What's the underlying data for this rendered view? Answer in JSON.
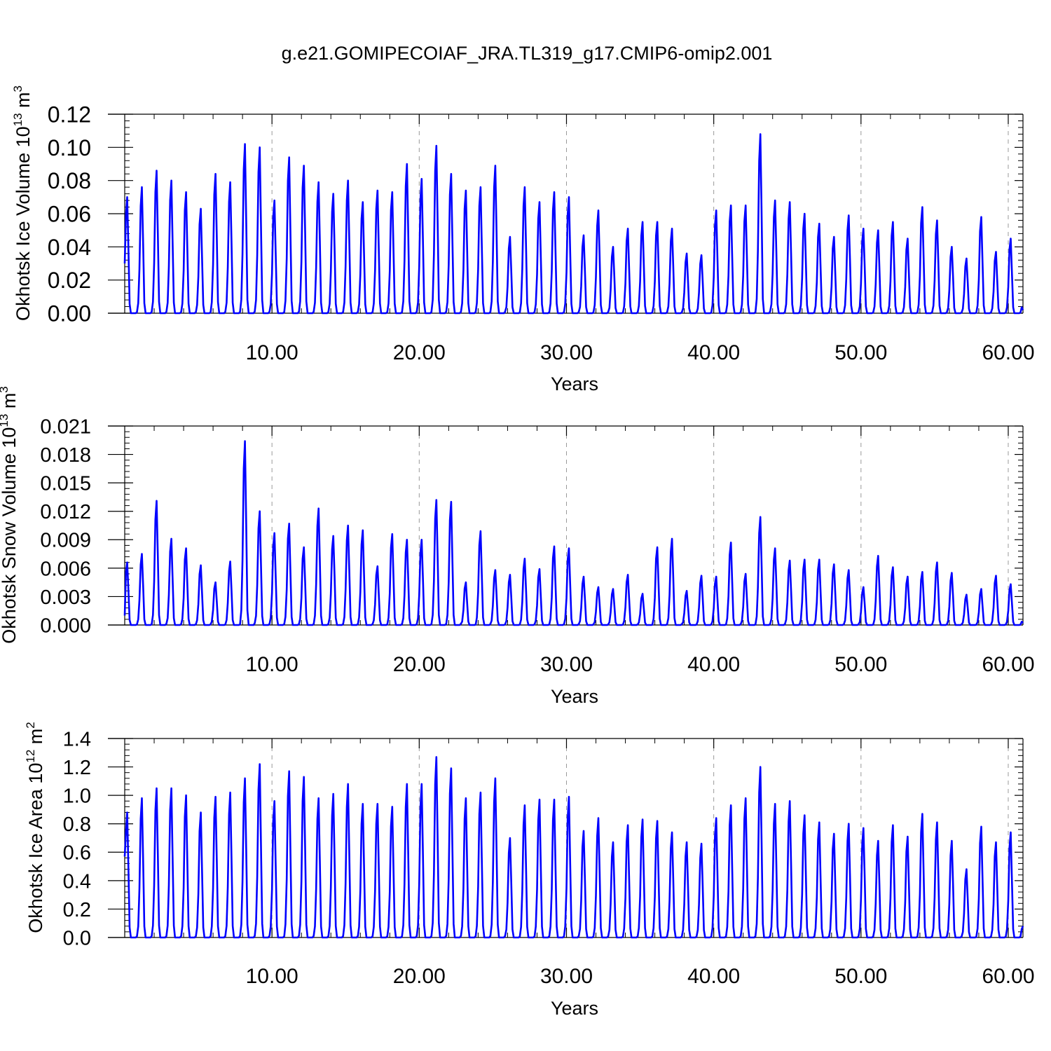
{
  "title": "g.e21.GOMIPECOIAF_JRA.TL319_g17.CMIP6-omip2.001",
  "colors": {
    "series": "#0000ff",
    "axis": "#000000",
    "grid": "#999999"
  },
  "chart_data": [
    {
      "type": "line",
      "ylabel_base": "Okhotsk Ice Volume 10",
      "ylabel_exp": "13",
      "ylabel_unit": " m",
      "ylabel_unit_exp": "3",
      "xlabel": "Years",
      "xlim": [
        0,
        61
      ],
      "ylim": [
        0,
        0.12
      ],
      "xticks": [
        10,
        20,
        30,
        40,
        50,
        60
      ],
      "xtick_labels": [
        "10.00",
        "20.00",
        "30.00",
        "40.00",
        "50.00",
        "60.00"
      ],
      "yticks": [
        0,
        0.02,
        0.04,
        0.06,
        0.08,
        0.1,
        0.12
      ],
      "ytick_labels": [
        "0.00",
        "0.02",
        "0.04",
        "0.06",
        "0.08",
        "0.10",
        "0.12"
      ],
      "grid": "vertical dashed at major x ticks",
      "start_value": 0.03,
      "end_value": 0.002,
      "annual_peaks": [
        0.07,
        0.076,
        0.086,
        0.08,
        0.073,
        0.063,
        0.084,
        0.079,
        0.102,
        0.1,
        0.068,
        0.094,
        0.089,
        0.079,
        0.072,
        0.08,
        0.067,
        0.074,
        0.073,
        0.09,
        0.081,
        0.101,
        0.084,
        0.074,
        0.076,
        0.089,
        0.046,
        0.076,
        0.067,
        0.073,
        0.07,
        0.047,
        0.062,
        0.04,
        0.051,
        0.055,
        0.055,
        0.051,
        0.036,
        0.035,
        0.062,
        0.065,
        0.065,
        0.108,
        0.068,
        0.067,
        0.06,
        0.054,
        0.046,
        0.059,
        0.051,
        0.05,
        0.055,
        0.045,
        0.064,
        0.056,
        0.04,
        0.033,
        0.058,
        0.037,
        0.045
      ]
    },
    {
      "type": "line",
      "ylabel_base": "Okhotsk Snow Volume 10",
      "ylabel_exp": "13",
      "ylabel_unit": " m",
      "ylabel_unit_exp": "3",
      "xlabel": "Years",
      "xlim": [
        0,
        61
      ],
      "ylim": [
        0,
        0.021
      ],
      "xticks": [
        10,
        20,
        30,
        40,
        50,
        60
      ],
      "xtick_labels": [
        "10.00",
        "20.00",
        "30.00",
        "40.00",
        "50.00",
        "60.00"
      ],
      "yticks": [
        0,
        0.003,
        0.006,
        0.009,
        0.012,
        0.015,
        0.018,
        0.021
      ],
      "ytick_labels": [
        "0.000",
        "0.003",
        "0.006",
        "0.009",
        "0.012",
        "0.015",
        "0.018",
        "0.021"
      ],
      "grid": "vertical dashed at major x ticks",
      "start_value": 0.001,
      "end_value": 0.0002,
      "annual_peaks": [
        0.0066,
        0.0075,
        0.0131,
        0.0091,
        0.0081,
        0.0063,
        0.0045,
        0.0067,
        0.0194,
        0.012,
        0.0097,
        0.0107,
        0.0082,
        0.0123,
        0.0094,
        0.0105,
        0.01,
        0.0062,
        0.0096,
        0.009,
        0.009,
        0.0132,
        0.013,
        0.0045,
        0.0099,
        0.0058,
        0.0053,
        0.007,
        0.0059,
        0.0083,
        0.0081,
        0.0051,
        0.004,
        0.0038,
        0.0053,
        0.0033,
        0.0082,
        0.0091,
        0.0036,
        0.0052,
        0.0051,
        0.0087,
        0.0054,
        0.0114,
        0.0081,
        0.0068,
        0.0069,
        0.0069,
        0.0064,
        0.0058,
        0.004,
        0.0073,
        0.0061,
        0.0051,
        0.0056,
        0.0066,
        0.0055,
        0.0032,
        0.0038,
        0.0052,
        0.0043
      ]
    },
    {
      "type": "line",
      "ylabel_base": "Okhotsk Ice Area 10",
      "ylabel_exp": "12",
      "ylabel_unit": " m",
      "ylabel_unit_exp": "2",
      "xlabel": "Years",
      "xlim": [
        0,
        61
      ],
      "ylim": [
        0,
        1.4
      ],
      "xticks": [
        10,
        20,
        30,
        40,
        50,
        60
      ],
      "xtick_labels": [
        "10.00",
        "20.00",
        "30.00",
        "40.00",
        "50.00",
        "60.00"
      ],
      "yticks": [
        0,
        0.2,
        0.4,
        0.6,
        0.8,
        1.0,
        1.2,
        1.4
      ],
      "ytick_labels": [
        "0.0",
        "0.2",
        "0.4",
        "0.6",
        "0.8",
        "1.0",
        "1.2",
        "1.4"
      ],
      "grid": "vertical dashed at major x ticks",
      "start_value": 0.57,
      "end_value": 0.08,
      "annual_peaks": [
        0.88,
        0.98,
        1.05,
        1.05,
        1.0,
        0.88,
        0.99,
        1.02,
        1.12,
        1.22,
        0.96,
        1.17,
        1.13,
        0.98,
        1.01,
        1.08,
        0.94,
        0.94,
        0.92,
        1.08,
        1.08,
        1.27,
        1.19,
        0.98,
        1.02,
        1.12,
        0.7,
        0.93,
        0.97,
        0.97,
        0.99,
        0.75,
        0.84,
        0.67,
        0.79,
        0.83,
        0.82,
        0.74,
        0.67,
        0.66,
        0.84,
        0.93,
        0.98,
        1.2,
        0.94,
        0.96,
        0.86,
        0.81,
        0.73,
        0.8,
        0.77,
        0.68,
        0.79,
        0.71,
        0.87,
        0.81,
        0.68,
        0.48,
        0.78,
        0.67,
        0.74
      ]
    }
  ]
}
